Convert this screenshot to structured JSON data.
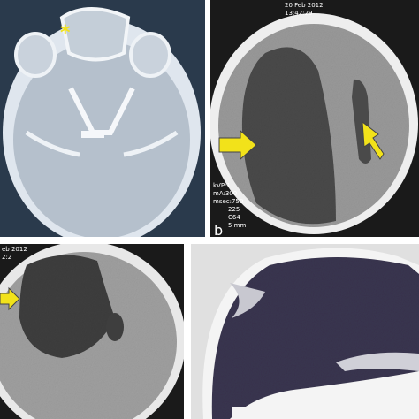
{
  "panel_a": {
    "marker": "*"
  },
  "panel_b": {
    "date": "20 Feb 2012",
    "time": "13:42:29",
    "scan_params": [
      "kVP:1",
      "mA:300",
      "msec:750",
      "225",
      "C64",
      "5 mm"
    ],
    "label": "b"
  },
  "panel_c": {
    "date": "eb 2012",
    "time": "2:2"
  }
}
